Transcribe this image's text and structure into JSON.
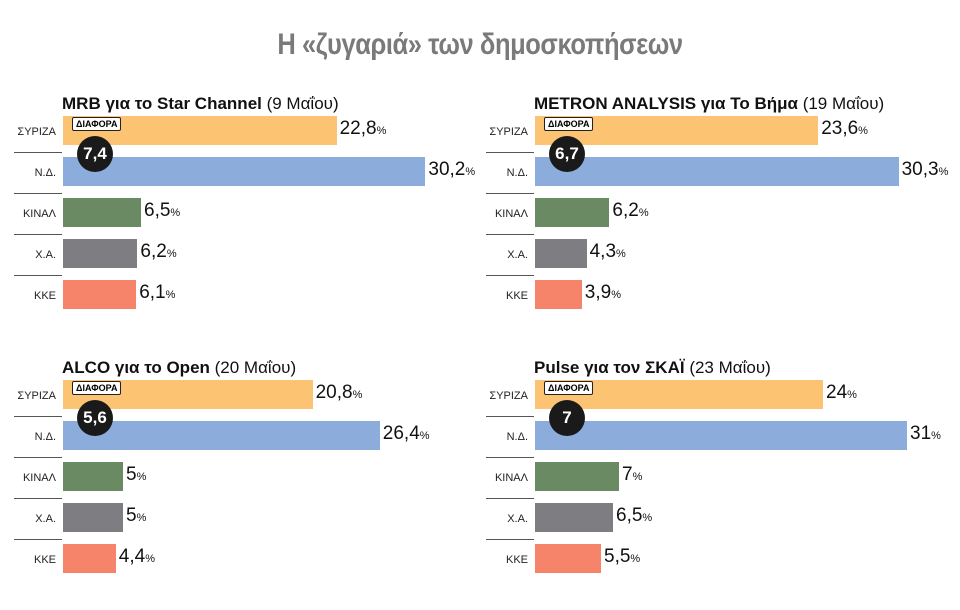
{
  "title": "Η «ζυγαριά» των δημοσκοπήσεων",
  "chart_data": [
    {
      "type": "bar",
      "orientation": "horizontal",
      "title_bold": "MRB για το Star Channel",
      "title_date": "(9 Μαΐου)",
      "categories": [
        "ΣΥΡΙΖΑ",
        "Ν.Δ.",
        "ΚΙΝΑΛ",
        "Χ.Α.",
        "ΚΚΕ"
      ],
      "values": [
        22.8,
        30.2,
        6.5,
        6.2,
        6.1
      ],
      "labels": [
        "22,8",
        "30,2",
        "6,5",
        "6,2",
        "6,1"
      ],
      "unit": "%",
      "difference_label": "ΔΙΑΦΟΡΑ",
      "difference": "7,4"
    },
    {
      "type": "bar",
      "orientation": "horizontal",
      "title_bold": "METRON ANALYSIS για Το Βήμα",
      "title_date": "(19 Μαΐου)",
      "categories": [
        "ΣΥΡΙΖΑ",
        "Ν.Δ.",
        "ΚΙΝΑΛ",
        "Χ.Α.",
        "ΚΚΕ"
      ],
      "values": [
        23.6,
        30.3,
        6.2,
        4.3,
        3.9
      ],
      "labels": [
        "23,6",
        "30,3",
        "6,2",
        "4,3",
        "3,9"
      ],
      "unit": "%",
      "difference_label": "ΔΙΑΦΟΡΑ",
      "difference": "6,7"
    },
    {
      "type": "bar",
      "orientation": "horizontal",
      "title_bold": "ALCO για το Open",
      "title_date": "(20 Μαΐου)",
      "categories": [
        "ΣΥΡΙΖΑ",
        "Ν.Δ.",
        "ΚΙΝΑΛ",
        "Χ.Α.",
        "ΚΚΕ"
      ],
      "values": [
        20.8,
        26.4,
        5,
        5,
        4.4
      ],
      "labels": [
        "20,8",
        "26,4",
        "5",
        "5",
        "4,4"
      ],
      "unit": "%",
      "difference_label": "ΔΙΑΦΟΡΑ",
      "difference": "5,6"
    },
    {
      "type": "bar",
      "orientation": "horizontal",
      "title_bold": "Pulse για τον ΣΚΑΪ",
      "title_date": "(23 Μαΐου)",
      "categories": [
        "ΣΥΡΙΖΑ",
        "Ν.Δ.",
        "ΚΙΝΑΛ",
        "Χ.Α.",
        "ΚΚΕ"
      ],
      "values": [
        24,
        31,
        7,
        6.5,
        5.5
      ],
      "labels": [
        "24",
        "31",
        "7",
        "6,5",
        "5,5"
      ],
      "unit": "%",
      "difference_label": "ΔΙΑΦΟΡΑ",
      "difference": "7"
    }
  ],
  "colors": [
    "#fcc472",
    "#8cacdc",
    "#6a8a64",
    "#7e7e82",
    "#f5846a"
  ]
}
